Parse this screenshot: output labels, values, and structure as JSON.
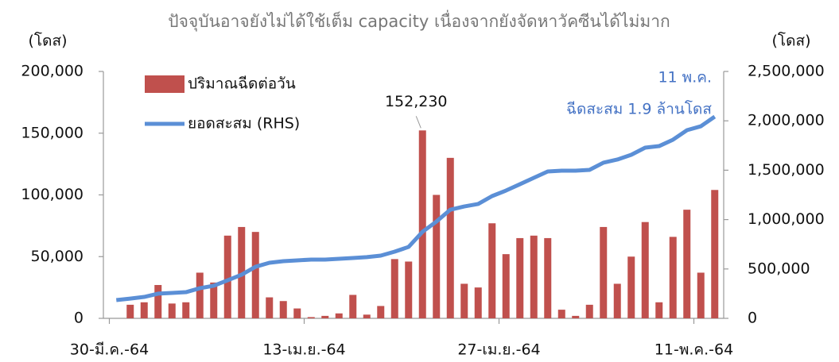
{
  "chart_data": {
    "type": "bar",
    "title": "ปัจจุบันอาจยังไม่ได้ใช้เต็ม capacity เนื่องจากยังจัดหาวัคซีนได้ไม่มาก",
    "ylabel": "(โดส)",
    "y2label": "(โดส)",
    "categories": [
      "30-มี.ค.-64",
      null,
      null,
      null,
      null,
      null,
      null,
      null,
      null,
      null,
      null,
      null,
      null,
      null,
      "13-เม.ย.-64",
      null,
      null,
      null,
      null,
      null,
      null,
      null,
      null,
      null,
      null,
      null,
      null,
      null,
      "27-เม.ย.-64",
      null,
      null,
      null,
      null,
      null,
      null,
      null,
      null,
      null,
      null,
      null,
      null,
      null,
      "11-พ.ค.-64",
      null
    ],
    "series": [
      {
        "name": "ปริมาณฉีดต่อวัน",
        "type": "bar",
        "color": "#c0504d",
        "values": [
          null,
          11000,
          13000,
          27000,
          12000,
          13000,
          37000,
          29000,
          67000,
          74000,
          70000,
          17000,
          14000,
          8000,
          1000,
          2000,
          4000,
          19000,
          3000,
          10000,
          48000,
          46000,
          152230,
          100000,
          130000,
          28000,
          25000,
          77000,
          52000,
          65000,
          67000,
          65000,
          7000,
          2000,
          11000,
          74000,
          28000,
          50000,
          78000,
          13000,
          66000,
          88000,
          37000,
          104000
        ],
        "value_labels": [
          null,
          null,
          null,
          null,
          null,
          null,
          null,
          null,
          null,
          null,
          null,
          null,
          null,
          null,
          null,
          null,
          null,
          null,
          null,
          null,
          null,
          null,
          "152,230",
          null,
          null,
          null,
          null,
          null,
          null,
          null,
          null,
          null,
          null,
          null,
          null,
          null,
          null,
          null,
          null,
          null,
          null,
          null,
          null,
          null
        ]
      },
      {
        "name": "ยอดสะสม (RHS)",
        "type": "line",
        "axis": "y2",
        "color": "#5b8fd6",
        "values": [
          185000,
          200000,
          217000,
          250000,
          257000,
          265000,
          305000,
          330000,
          385000,
          442000,
          522000,
          563000,
          579000,
          587000,
          595000,
          595000,
          603000,
          611000,
          620000,
          635000,
          675000,
          723000,
          876000,
          980000,
          1100000,
          1133000,
          1158000,
          1238000,
          1294000,
          1358000,
          1423000,
          1487000,
          1495000,
          1495000,
          1503000,
          1576000,
          1608000,
          1656000,
          1728000,
          1744000,
          1809000,
          1905000,
          1945000,
          2042000
        ]
      }
    ],
    "ylim": [
      0,
      200000
    ],
    "yticks": [
      0,
      {
        "value": 50000,
        "label": "50,000"
      },
      {
        "value": 100000,
        "label": "100,000"
      },
      {
        "value": 150000,
        "label": "150,000"
      },
      {
        "value": 200000,
        "label": "200,000"
      }
    ],
    "y2lim": [
      0,
      2500000
    ],
    "y2ticks": [
      0,
      {
        "value": 500000,
        "label": "500,000"
      },
      {
        "value": 1000000,
        "label": "1,000,000"
      },
      {
        "value": 1500000,
        "label": "1,500,000"
      },
      {
        "value": 2000000,
        "label": "2,000,000"
      },
      {
        "value": 2500000,
        "label": "2,500,000"
      }
    ],
    "annotations": [
      "11 พ.ค.",
      "ฉีดสะสม 1.9 ล้านโดส"
    ],
    "legend": "upper left",
    "grid": false
  }
}
